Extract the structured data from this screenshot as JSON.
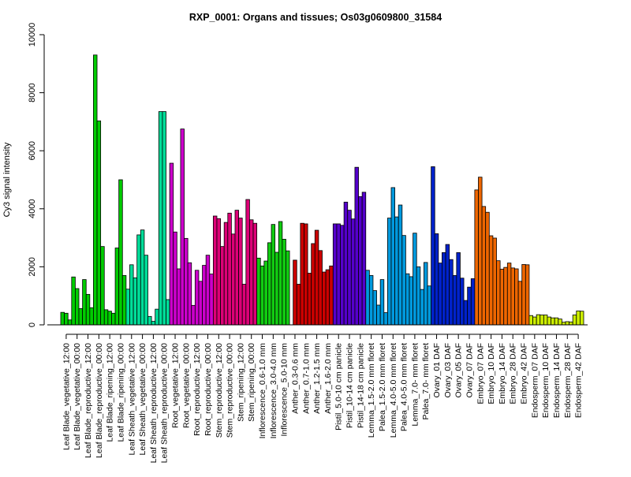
{
  "chart_data": {
    "type": "bar",
    "title": "RXP_0001: Organs and tissues; Os03g0609800_31584",
    "xlabel": "",
    "ylabel": "Cy3 signal intensity",
    "ylim": [
      0,
      10000
    ],
    "yticks": [
      0,
      2000,
      4000,
      6000,
      8000,
      10000
    ],
    "grid": false,
    "legend": "none",
    "categories": [
      "Leaf Blade_vegetative_12:00",
      "Leaf Blade_vegetative_00:00",
      "Leaf Blade_reproductive_12:00",
      "Leaf Blade_reproductive_00:00",
      "Leaf Blade_ripening_12:00",
      "Leaf Blade_ripening_00:00",
      "Leaf Sheath_vegetative_12:00",
      "Leaf Sheath_vegetative_00:00",
      "Leaf Sheath_reproductive_12:00",
      "Leaf Sheath_reproductive_00:00",
      "Root_vegetative_12:00",
      "Root_vegetative_00:00",
      "Root_reproductive_12:00",
      "Root_reproductive_00:00",
      "Stem_reproductive_12:00",
      "Stem_reproductive_00:00",
      "Stem_ripening_12:00",
      "Stem_ripening_00:00",
      "Inflorescence_0.6-1.0 mm",
      "Inflorescence_3.0-4.0 mm",
      "Inflorescence_5.0-10 mm",
      "Anther_0.3-0.6 mm",
      "Anther_0.7-1.0 mm",
      "Anther_1.2-1.5 mm",
      "Anther_1.6-2.0 mm",
      "Pistil_5.0-10 cm panicle",
      "Pistil_10-14 cm panicle",
      "Pistil_14-18 cm panicle",
      "Lemma_1.5-2.0 mm floret",
      "Palea_1.5-2.0 mm floret",
      "Lemma_4.0-5.0 mm floret",
      "Palea_4.0-5.0 mm floret",
      "Lemma_7.0- mm floret",
      "Palea_7.0- mm floret",
      "Ovary_01 DAF",
      "Ovary_03 DAF",
      "Ovary_05 DAF",
      "Ovary_07 DAF",
      "Embryo_07 DAF",
      "Embryo_10 DAF",
      "Embryo_14 DAF",
      "Embryo_28 DAF",
      "Embryo_42 DAF",
      "Endosperm_07 DAF",
      "Endosperm_10 DAF",
      "Endosperm_14 DAF",
      "Endosperm_28 DAF",
      "Endosperm_42 DAF"
    ],
    "group_colors": [
      "#00cc00",
      "#00cc00",
      "#00cc00",
      "#00cc00",
      "#00cc00",
      "#00cc00",
      "#00dd99",
      "#00dd99",
      "#00dd99",
      "#00dd99",
      "#cc00cc",
      "#cc00cc",
      "#cc00cc",
      "#cc00cc",
      "#dd0077",
      "#dd0077",
      "#dd0077",
      "#dd0077",
      "#11cc11",
      "#11cc11",
      "#11cc11",
      "#cc0000",
      "#cc0000",
      "#cc0000",
      "#cc0000",
      "#5500cc",
      "#5500cc",
      "#5500cc",
      "#0099dd",
      "#0099dd",
      "#0099dd",
      "#0099dd",
      "#0099dd",
      "#0099dd",
      "#0022cc",
      "#0022cc",
      "#0022cc",
      "#0022cc",
      "#ee6600",
      "#ee6600",
      "#ee6600",
      "#ee6600",
      "#ee6600",
      "#ccee00",
      "#ccee00",
      "#ccee00",
      "#ccee00",
      "#ccee00"
    ],
    "replicate_values": [
      [
        430,
        400,
        170
      ],
      [
        1650,
        1250,
        560
      ],
      [
        1560,
        1050,
        590
      ],
      [
        9300,
        7030,
        2700
      ],
      [
        520,
        470,
        400
      ],
      [
        2650,
        5000,
        1700
      ],
      [
        1230,
        2070,
        1620
      ],
      [
        3100,
        3270,
        2400
      ],
      [
        290,
        120,
        540
      ],
      [
        7350,
        7350,
        870
      ],
      [
        5570,
        3200,
        1930
      ],
      [
        6750,
        2980,
        2140
      ],
      [
        670,
        1880,
        1500
      ],
      [
        2050,
        2400,
        1750
      ],
      [
        3750,
        3660,
        2700
      ],
      [
        3530,
        3850,
        3130
      ],
      [
        3950,
        3680,
        1400
      ],
      [
        4320,
        3620,
        3500
      ],
      [
        2300,
        2030,
        2200
      ],
      [
        2830,
        3460,
        2500
      ],
      [
        3560,
        2950,
        2550
      ],
      [
        0,
        2230,
        1400
      ],
      [
        3500,
        3480,
        1780
      ],
      [
        2800,
        3260,
        2560
      ],
      [
        1820,
        1900,
        2030
      ],
      [
        3480,
        3480,
        3430
      ],
      [
        4230,
        3950,
        3650
      ],
      [
        5430,
        4420,
        4570
      ],
      [
        1880,
        1700,
        1180
      ],
      [
        680,
        1560,
        420
      ],
      [
        3680,
        4730,
        3720
      ],
      [
        4130,
        3080,
        1760
      ],
      [
        1660,
        3160,
        2000
      ],
      [
        1220,
        2150,
        1340
      ],
      [
        5450,
        3140,
        2130
      ],
      [
        2490,
        2770,
        2250
      ],
      [
        1700,
        2490,
        1610
      ],
      [
        840,
        1300,
        1590
      ],
      [
        4650,
        5090,
        4080
      ],
      [
        3880,
        3070,
        2990
      ],
      [
        2210,
        1920,
        1980
      ],
      [
        2130,
        1960,
        1930
      ],
      [
        1500,
        2080,
        2070
      ],
      [
        320,
        270,
        350
      ],
      [
        340,
        340,
        270
      ],
      [
        240,
        240,
        200
      ],
      [
        90,
        110,
        100
      ],
      [
        340,
        480,
        470
      ]
    ]
  }
}
